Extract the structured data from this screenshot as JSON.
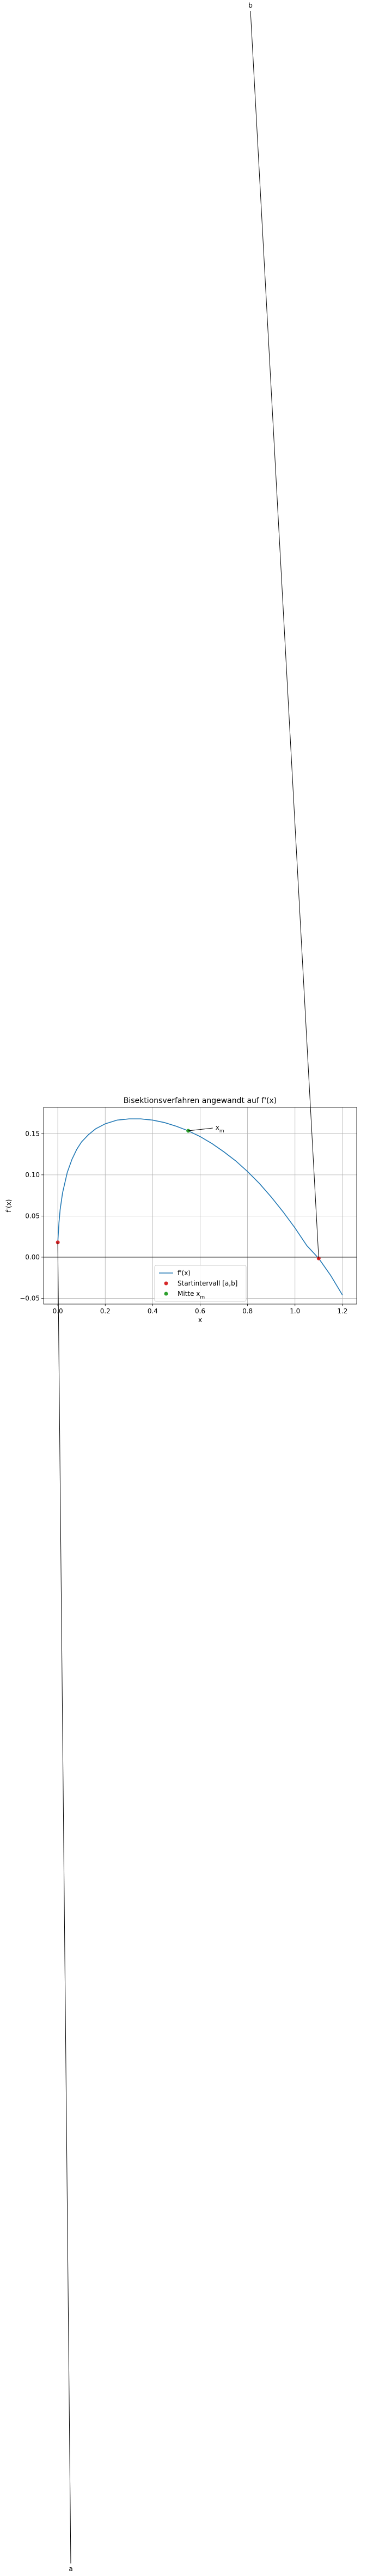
{
  "chart_data": {
    "type": "line",
    "title": "Bisektionsverfahren angewandt auf f'(x)",
    "xlabel": "x",
    "ylabel": "f'(x)",
    "xlim": [
      -0.06,
      1.26
    ],
    "ylim": [
      -0.057,
      0.182
    ],
    "xticks": [
      0.0,
      0.2,
      0.4,
      0.6,
      0.8,
      1.0,
      1.2
    ],
    "xtick_labels": [
      "0.0",
      "0.2",
      "0.4",
      "0.6",
      "0.8",
      "1.0",
      "1.2"
    ],
    "yticks": [
      -0.05,
      0.0,
      0.05,
      0.1,
      0.15
    ],
    "ytick_labels": [
      "−0.05",
      "0.00",
      "0.05",
      "0.10",
      "0.15"
    ],
    "grid": true,
    "legend_position": "lower-center",
    "curve": {
      "name": "f'(x)",
      "color": "#1f77b4",
      "x": [
        0.0,
        0.005,
        0.01,
        0.02,
        0.04,
        0.06,
        0.08,
        0.1,
        0.13,
        0.16,
        0.2,
        0.25,
        0.3,
        0.35,
        0.4,
        0.45,
        0.5,
        0.55,
        0.6,
        0.65,
        0.7,
        0.75,
        0.8,
        0.85,
        0.9,
        0.95,
        1.0,
        1.05,
        1.1,
        1.15,
        1.2
      ],
      "y": [
        0.018,
        0.042,
        0.058,
        0.078,
        0.103,
        0.119,
        0.131,
        0.14,
        0.149,
        0.156,
        0.162,
        0.1665,
        0.168,
        0.168,
        0.1665,
        0.1635,
        0.159,
        0.1535,
        0.1465,
        0.138,
        0.128,
        0.117,
        0.104,
        0.0895,
        0.073,
        0.055,
        0.0355,
        0.014,
        -0.0015,
        -0.022,
        -0.046
      ]
    },
    "horizontal_line": {
      "y": 0.0,
      "color": "#000000"
    },
    "start_interval": {
      "name": "Startintervall [a,b]",
      "color": "#d62728",
      "points": [
        {
          "label": "a",
          "x": 0.0,
          "y": 0.018
        },
        {
          "label": "b",
          "x": 1.1,
          "y": -0.0015
        }
      ]
    },
    "midpoint": {
      "name": "Mitte x",
      "name_subscript": "m",
      "annotation": "x",
      "annotation_subscript": "m",
      "color": "#2ca02c",
      "x": 0.55,
      "y": 0.1535
    },
    "legend": [
      {
        "name": "f'(x)",
        "kind": "line",
        "color": "#1f77b4"
      },
      {
        "name": "Startintervall [a,b]",
        "kind": "marker",
        "color": "#d62728"
      },
      {
        "name": "Mitte x",
        "subscript": "m",
        "kind": "marker",
        "color": "#2ca02c"
      }
    ]
  }
}
